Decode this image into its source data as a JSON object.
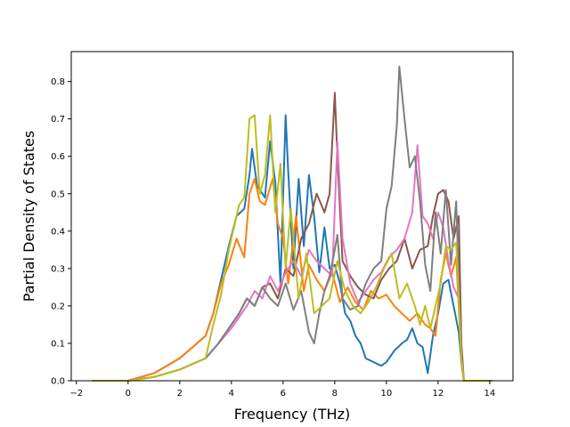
{
  "chart_data": {
    "type": "line",
    "title": "",
    "xlabel": "Frequency (THz)",
    "ylabel": "Partial Density of States",
    "xlim": [
      -2.2,
      14.9
    ],
    "ylim": [
      0.0,
      0.88
    ],
    "grid": false,
    "legend": "none",
    "xticks": [
      -2,
      0,
      2,
      4,
      6,
      8,
      10,
      12,
      14
    ],
    "xtick_labels": [
      "−2",
      "0",
      "2",
      "4",
      "6",
      "8",
      "10",
      "12",
      "14"
    ],
    "yticks": [
      0.0,
      0.1,
      0.2,
      0.3,
      0.4,
      0.5,
      0.6,
      0.7,
      0.8
    ],
    "ytick_labels": [
      "0.0",
      "0.1",
      "0.2",
      "0.3",
      "0.4",
      "0.5",
      "0.6",
      "0.7",
      "0.8"
    ],
    "series": [
      {
        "color": "#1f77b4",
        "x": [
          -1.4,
          0.0,
          0.5,
          1.0,
          1.5,
          2.0,
          2.5,
          3.0,
          3.3,
          3.6,
          3.9,
          4.2,
          4.5,
          4.7,
          4.8,
          5.0,
          5.3,
          5.5,
          5.7,
          5.9,
          6.1,
          6.2,
          6.4,
          6.6,
          6.8,
          7.0,
          7.2,
          7.4,
          7.6,
          7.8,
          8.0,
          8.2,
          8.4,
          8.6,
          8.8,
          9.0,
          9.2,
          9.5,
          9.8,
          10.0,
          10.3,
          10.6,
          10.8,
          11.0,
          11.2,
          11.4,
          11.6,
          11.8,
          12.0,
          12.2,
          12.4,
          12.6,
          12.8,
          12.9,
          13.0,
          14.1
        ],
        "y": [
          0.0,
          0.0,
          0.01,
          0.02,
          0.04,
          0.06,
          0.09,
          0.12,
          0.18,
          0.27,
          0.36,
          0.44,
          0.46,
          0.55,
          0.62,
          0.52,
          0.49,
          0.64,
          0.53,
          0.26,
          0.71,
          0.56,
          0.3,
          0.54,
          0.36,
          0.55,
          0.44,
          0.29,
          0.41,
          0.3,
          0.31,
          0.26,
          0.18,
          0.16,
          0.12,
          0.1,
          0.06,
          0.05,
          0.04,
          0.05,
          0.08,
          0.1,
          0.11,
          0.14,
          0.1,
          0.09,
          0.02,
          0.12,
          0.18,
          0.26,
          0.27,
          0.2,
          0.13,
          0.05,
          0.0,
          0.0
        ]
      },
      {
        "color": "#ff7f0e",
        "x": [
          -1.4,
          0.0,
          0.5,
          1.0,
          1.5,
          2.0,
          2.5,
          3.0,
          3.3,
          3.6,
          3.9,
          4.2,
          4.5,
          4.7,
          4.9,
          5.1,
          5.3,
          5.6,
          5.8,
          6.0,
          6.2,
          6.5,
          6.8,
          7.0,
          7.3,
          7.6,
          7.9,
          8.2,
          8.5,
          8.8,
          9.1,
          9.4,
          9.7,
          10.0,
          10.3,
          10.6,
          10.9,
          11.2,
          11.5,
          11.7,
          11.9,
          12.1,
          12.3,
          12.5,
          12.7,
          12.9,
          13.0,
          14.1
        ],
        "y": [
          0.0,
          0.0,
          0.01,
          0.02,
          0.04,
          0.06,
          0.09,
          0.12,
          0.18,
          0.26,
          0.31,
          0.38,
          0.33,
          0.5,
          0.54,
          0.48,
          0.47,
          0.54,
          0.42,
          0.38,
          0.26,
          0.44,
          0.24,
          0.31,
          0.27,
          0.24,
          0.29,
          0.21,
          0.25,
          0.21,
          0.19,
          0.24,
          0.22,
          0.23,
          0.2,
          0.18,
          0.16,
          0.18,
          0.15,
          0.14,
          0.12,
          0.27,
          0.34,
          0.28,
          0.33,
          0.06,
          0.0,
          0.0
        ]
      },
      {
        "color": "#8c564b",
        "x": [
          -1.4,
          0.0,
          1.0,
          2.0,
          3.0,
          3.5,
          4.0,
          4.3,
          4.6,
          4.9,
          5.2,
          5.5,
          5.8,
          6.1,
          6.4,
          6.7,
          7.0,
          7.3,
          7.6,
          7.8,
          8.0,
          8.1,
          8.3,
          8.6,
          8.9,
          9.2,
          9.5,
          9.8,
          10.1,
          10.4,
          10.7,
          11.0,
          11.3,
          11.6,
          11.8,
          12.0,
          12.2,
          12.4,
          12.6,
          12.8,
          12.9,
          13.0,
          14.1
        ],
        "y": [
          0.0,
          0.0,
          0.01,
          0.03,
          0.06,
          0.1,
          0.15,
          0.18,
          0.22,
          0.2,
          0.25,
          0.26,
          0.22,
          0.3,
          0.28,
          0.38,
          0.42,
          0.5,
          0.45,
          0.5,
          0.77,
          0.6,
          0.32,
          0.28,
          0.25,
          0.23,
          0.22,
          0.27,
          0.3,
          0.32,
          0.38,
          0.3,
          0.35,
          0.36,
          0.44,
          0.5,
          0.51,
          0.48,
          0.38,
          0.44,
          0.1,
          0.0,
          0.0
        ]
      },
      {
        "color": "#e377c2",
        "x": [
          -1.4,
          0.0,
          1.0,
          2.0,
          3.0,
          3.5,
          4.0,
          4.3,
          4.6,
          4.9,
          5.2,
          5.5,
          5.8,
          6.1,
          6.4,
          6.7,
          7.0,
          7.3,
          7.6,
          7.9,
          8.1,
          8.3,
          8.6,
          8.9,
          9.2,
          9.5,
          9.8,
          10.1,
          10.4,
          10.7,
          11.0,
          11.2,
          11.4,
          11.6,
          11.8,
          12.0,
          12.2,
          12.4,
          12.6,
          12.8,
          12.9,
          13.0,
          14.1
        ],
        "y": [
          0.0,
          0.0,
          0.01,
          0.03,
          0.06,
          0.1,
          0.14,
          0.17,
          0.2,
          0.24,
          0.22,
          0.28,
          0.24,
          0.29,
          0.32,
          0.28,
          0.35,
          0.32,
          0.3,
          0.28,
          0.64,
          0.38,
          0.26,
          0.21,
          0.24,
          0.27,
          0.29,
          0.33,
          0.35,
          0.38,
          0.45,
          0.63,
          0.44,
          0.42,
          0.38,
          0.45,
          0.41,
          0.32,
          0.25,
          0.22,
          0.06,
          0.0,
          0.0
        ]
      },
      {
        "color": "#7f7f7f",
        "x": [
          -1.4,
          0.0,
          1.0,
          2.0,
          3.0,
          3.5,
          4.0,
          4.3,
          4.6,
          4.9,
          5.2,
          5.5,
          5.8,
          6.1,
          6.4,
          6.7,
          7.0,
          7.2,
          7.4,
          7.6,
          7.8,
          8.0,
          8.1,
          8.3,
          8.6,
          8.9,
          9.2,
          9.5,
          9.8,
          10.0,
          10.2,
          10.4,
          10.5,
          10.7,
          10.9,
          11.1,
          11.3,
          11.5,
          11.7,
          11.9,
          12.1,
          12.3,
          12.5,
          12.7,
          12.9,
          13.0,
          14.1
        ],
        "y": [
          0.0,
          0.0,
          0.01,
          0.03,
          0.06,
          0.1,
          0.15,
          0.18,
          0.22,
          0.2,
          0.25,
          0.22,
          0.2,
          0.26,
          0.19,
          0.24,
          0.13,
          0.1,
          0.18,
          0.24,
          0.28,
          0.35,
          0.39,
          0.22,
          0.19,
          0.2,
          0.26,
          0.3,
          0.32,
          0.46,
          0.52,
          0.68,
          0.84,
          0.7,
          0.57,
          0.6,
          0.48,
          0.31,
          0.24,
          0.45,
          0.34,
          0.51,
          0.31,
          0.48,
          0.05,
          0.0,
          0.0
        ]
      },
      {
        "color": "#bcbd22",
        "x": [
          -1.4,
          0.0,
          1.0,
          2.0,
          3.0,
          3.3,
          3.6,
          3.9,
          4.1,
          4.3,
          4.5,
          4.7,
          4.9,
          5.1,
          5.3,
          5.5,
          5.7,
          5.9,
          6.1,
          6.3,
          6.6,
          6.9,
          7.2,
          7.5,
          7.8,
          8.1,
          8.4,
          8.7,
          9.0,
          9.3,
          9.6,
          9.9,
          10.2,
          10.5,
          10.8,
          11.1,
          11.3,
          11.5,
          11.7,
          11.9,
          12.1,
          12.3,
          12.5,
          12.7,
          12.9,
          13.0,
          14.1
        ],
        "y": [
          0.0,
          0.0,
          0.01,
          0.03,
          0.06,
          0.15,
          0.23,
          0.35,
          0.41,
          0.47,
          0.49,
          0.7,
          0.71,
          0.5,
          0.55,
          0.71,
          0.45,
          0.58,
          0.3,
          0.46,
          0.22,
          0.34,
          0.18,
          0.2,
          0.22,
          0.32,
          0.24,
          0.2,
          0.18,
          0.21,
          0.25,
          0.3,
          0.34,
          0.22,
          0.26,
          0.2,
          0.15,
          0.2,
          0.14,
          0.2,
          0.26,
          0.36,
          0.35,
          0.37,
          0.06,
          0.0,
          0.0
        ]
      }
    ]
  }
}
